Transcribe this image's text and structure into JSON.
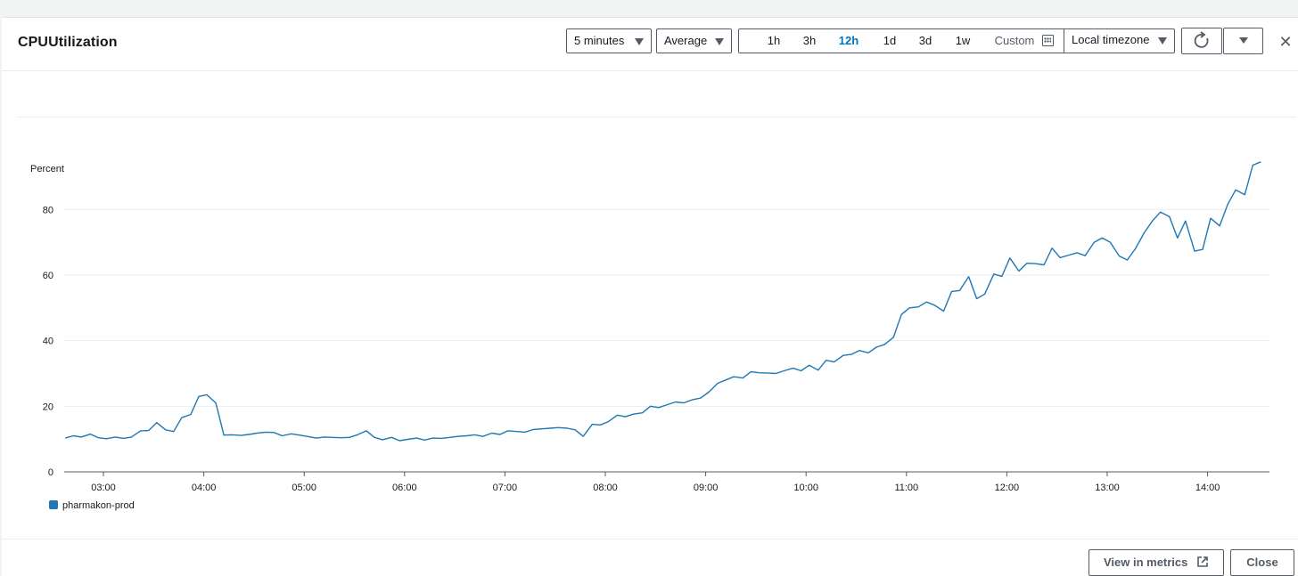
{
  "header": {
    "title": "CPUUtilization",
    "period_select": "5 minutes",
    "stat_select": "Average",
    "ranges": [
      {
        "label": "1h",
        "active": false
      },
      {
        "label": "3h",
        "active": false
      },
      {
        "label": "12h",
        "active": true
      },
      {
        "label": "1d",
        "active": false
      },
      {
        "label": "3d",
        "active": false
      },
      {
        "label": "1w",
        "active": false
      }
    ],
    "custom_label": "Custom",
    "timezone_select": "Local timezone",
    "close_icon": "close-icon",
    "refresh_icon": "refresh-icon",
    "refresh_menu_icon": "caret-down-icon"
  },
  "footer": {
    "view_in_metrics": "View in metrics",
    "close": "Close",
    "external_icon": "external-link-icon"
  },
  "colors": {
    "series": "#1f77b4",
    "active_range": "#0073bb"
  },
  "chart_data": {
    "type": "line",
    "ylabel": "Percent",
    "ylim": [
      0,
      95
    ],
    "yticks": [
      0,
      20,
      40,
      60,
      80
    ],
    "xticks": [
      "03:00",
      "04:00",
      "05:00",
      "06:00",
      "07:00",
      "08:00",
      "09:00",
      "10:00",
      "11:00",
      "12:00",
      "13:00",
      "14:00"
    ],
    "x_unit": "hours",
    "xlim": [
      2.57,
      14.58
    ],
    "grid": true,
    "legend": "bottom-left",
    "series": [
      {
        "name": "pharmakon-prod",
        "points": [
          [
            2.62,
            10.3
          ],
          [
            2.7,
            11.0
          ],
          [
            2.78,
            10.6
          ],
          [
            2.87,
            11.5
          ],
          [
            2.95,
            10.4
          ],
          [
            3.03,
            10.1
          ],
          [
            3.12,
            10.6
          ],
          [
            3.2,
            10.2
          ],
          [
            3.28,
            10.6
          ],
          [
            3.37,
            12.5
          ],
          [
            3.45,
            12.6
          ],
          [
            3.53,
            15.0
          ],
          [
            3.62,
            12.8
          ],
          [
            3.7,
            12.3
          ],
          [
            3.78,
            16.5
          ],
          [
            3.87,
            17.5
          ],
          [
            3.95,
            23.0
          ],
          [
            4.03,
            23.5
          ],
          [
            4.12,
            21.0
          ],
          [
            4.2,
            11.2
          ],
          [
            4.28,
            11.3
          ],
          [
            4.37,
            11.1
          ],
          [
            4.45,
            11.4
          ],
          [
            4.53,
            11.8
          ],
          [
            4.62,
            12.1
          ],
          [
            4.7,
            12.0
          ],
          [
            4.78,
            11.0
          ],
          [
            4.87,
            11.6
          ],
          [
            4.95,
            11.2
          ],
          [
            5.03,
            10.8
          ],
          [
            5.12,
            10.3
          ],
          [
            5.2,
            10.6
          ],
          [
            5.28,
            10.5
          ],
          [
            5.37,
            10.4
          ],
          [
            5.45,
            10.5
          ],
          [
            5.53,
            11.3
          ],
          [
            5.62,
            12.5
          ],
          [
            5.7,
            10.5
          ],
          [
            5.78,
            9.8
          ],
          [
            5.87,
            10.5
          ],
          [
            5.95,
            9.5
          ],
          [
            6.03,
            9.9
          ],
          [
            6.12,
            10.3
          ],
          [
            6.2,
            9.7
          ],
          [
            6.28,
            10.3
          ],
          [
            6.37,
            10.2
          ],
          [
            6.45,
            10.5
          ],
          [
            6.53,
            10.8
          ],
          [
            6.62,
            11.0
          ],
          [
            6.7,
            11.3
          ],
          [
            6.78,
            10.8
          ],
          [
            6.87,
            11.8
          ],
          [
            6.95,
            11.4
          ],
          [
            7.03,
            12.5
          ],
          [
            7.12,
            12.3
          ],
          [
            7.2,
            12.1
          ],
          [
            7.28,
            12.9
          ],
          [
            7.37,
            13.1
          ],
          [
            7.45,
            13.3
          ],
          [
            7.53,
            13.5
          ],
          [
            7.62,
            13.3
          ],
          [
            7.7,
            12.8
          ],
          [
            7.78,
            10.8
          ],
          [
            7.87,
            14.5
          ],
          [
            7.95,
            14.3
          ],
          [
            8.03,
            15.3
          ],
          [
            8.12,
            17.3
          ],
          [
            8.2,
            16.8
          ],
          [
            8.28,
            17.6
          ],
          [
            8.37,
            18.0
          ],
          [
            8.45,
            20.0
          ],
          [
            8.53,
            19.6
          ],
          [
            8.62,
            20.5
          ],
          [
            8.7,
            21.3
          ],
          [
            8.78,
            21.0
          ],
          [
            8.87,
            22.0
          ],
          [
            8.95,
            22.5
          ],
          [
            9.03,
            24.3
          ],
          [
            9.12,
            27.0
          ],
          [
            9.2,
            28.0
          ],
          [
            9.28,
            29.0
          ],
          [
            9.37,
            28.6
          ],
          [
            9.45,
            30.5
          ],
          [
            9.53,
            30.2
          ],
          [
            9.62,
            30.1
          ],
          [
            9.7,
            30.0
          ],
          [
            9.78,
            30.8
          ],
          [
            9.87,
            31.6
          ],
          [
            9.95,
            30.8
          ],
          [
            10.03,
            32.5
          ],
          [
            10.12,
            31.0
          ],
          [
            10.2,
            34.0
          ],
          [
            10.28,
            33.5
          ],
          [
            10.37,
            35.5
          ],
          [
            10.45,
            35.8
          ],
          [
            10.53,
            37.0
          ],
          [
            10.62,
            36.3
          ],
          [
            10.7,
            38.0
          ],
          [
            10.78,
            38.8
          ],
          [
            10.87,
            41.0
          ],
          [
            10.95,
            48.0
          ],
          [
            11.03,
            50.0
          ],
          [
            11.12,
            50.3
          ],
          [
            11.2,
            51.8
          ],
          [
            11.28,
            50.8
          ],
          [
            11.37,
            49.0
          ],
          [
            11.45,
            55.0
          ],
          [
            11.53,
            55.3
          ],
          [
            11.62,
            59.5
          ],
          [
            11.7,
            52.8
          ],
          [
            11.78,
            54.2
          ],
          [
            11.87,
            60.3
          ],
          [
            11.95,
            59.6
          ],
          [
            12.03,
            65.2
          ],
          [
            12.12,
            61.2
          ],
          [
            12.2,
            63.6
          ],
          [
            12.28,
            63.5
          ],
          [
            12.37,
            63.1
          ],
          [
            12.45,
            68.2
          ],
          [
            12.53,
            65.3
          ],
          [
            12.62,
            66.1
          ],
          [
            12.7,
            66.8
          ],
          [
            12.78,
            65.9
          ],
          [
            12.87,
            70.0
          ],
          [
            12.95,
            71.3
          ],
          [
            13.03,
            70.0
          ],
          [
            13.12,
            65.8
          ],
          [
            13.2,
            64.6
          ],
          [
            13.28,
            68.0
          ],
          [
            13.37,
            73.0
          ],
          [
            13.45,
            76.5
          ],
          [
            13.53,
            79.2
          ],
          [
            13.62,
            77.8
          ],
          [
            13.7,
            71.3
          ],
          [
            13.78,
            76.5
          ],
          [
            13.87,
            67.3
          ],
          [
            13.95,
            67.8
          ],
          [
            14.03,
            77.3
          ],
          [
            14.12,
            75.0
          ],
          [
            14.2,
            81.5
          ],
          [
            14.28,
            86.0
          ],
          [
            14.37,
            84.5
          ],
          [
            14.45,
            93.5
          ],
          [
            14.53,
            94.5
          ]
        ]
      }
    ]
  }
}
